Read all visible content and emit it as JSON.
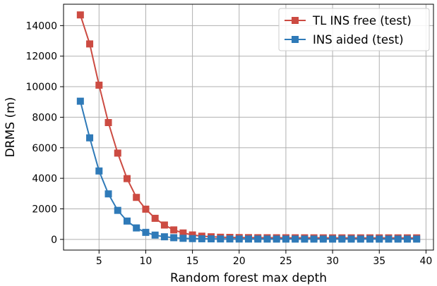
{
  "chart_data": {
    "type": "line",
    "xlabel": "Random forest max depth",
    "ylabel": "DRMS (m)",
    "xlim": [
      1.2,
      40.8
    ],
    "ylim": [
      -700,
      15400
    ],
    "xticks": [
      5,
      10,
      15,
      20,
      25,
      30,
      35,
      40
    ],
    "yticks": [
      0,
      2000,
      4000,
      6000,
      8000,
      10000,
      12000,
      14000
    ],
    "grid": true,
    "legend_position": "top-right",
    "x": [
      3,
      4,
      5,
      6,
      7,
      8,
      9,
      10,
      11,
      12,
      13,
      14,
      15,
      16,
      17,
      18,
      19,
      20,
      21,
      22,
      23,
      24,
      25,
      26,
      27,
      28,
      29,
      30,
      31,
      32,
      33,
      34,
      35,
      36,
      37,
      38,
      39
    ],
    "series": [
      {
        "name": "TL INS free (test)",
        "color": "#cc4b42",
        "marker": "square",
        "values": [
          14700,
          12800,
          10100,
          7650,
          5650,
          3980,
          2750,
          1980,
          1380,
          940,
          620,
          420,
          290,
          210,
          170,
          140,
          130,
          120,
          115,
          110,
          108,
          106,
          105,
          104,
          103,
          102,
          101,
          100,
          100,
          100,
          100,
          100,
          100,
          100,
          100,
          100,
          100
        ]
      },
      {
        "name": "INS aided (test)",
        "color": "#2f7ab8",
        "marker": "square",
        "values": [
          9050,
          6650,
          4480,
          2980,
          1900,
          1200,
          750,
          460,
          280,
          170,
          110,
          70,
          50,
          40,
          35,
          30,
          28,
          25,
          24,
          22,
          21,
          20,
          20,
          20,
          20,
          20,
          20,
          20,
          20,
          20,
          20,
          20,
          20,
          20,
          20,
          20,
          20
        ]
      }
    ]
  }
}
